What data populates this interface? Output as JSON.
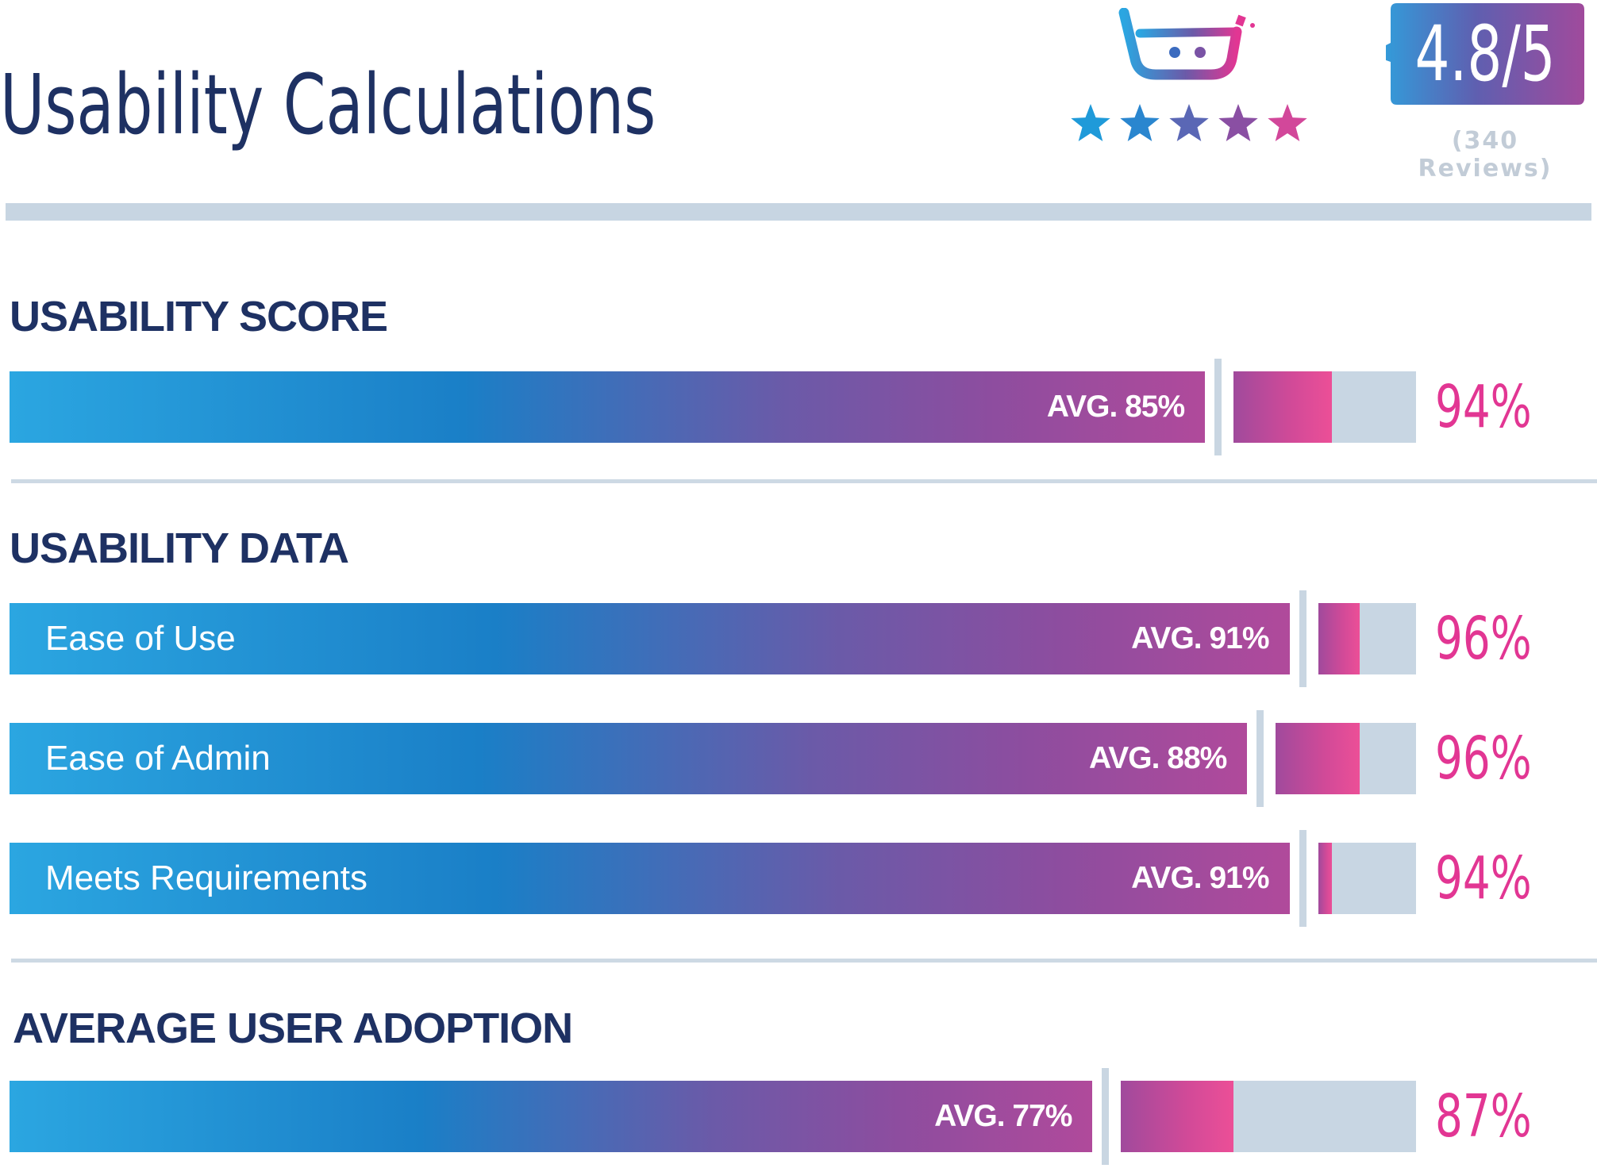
{
  "title": "Usability Calculations",
  "rating": {
    "score": "4.8/5",
    "reviews": "(340 Reviews)",
    "stars": 5
  },
  "colors": {
    "navy": "#1e3163",
    "accent_pink": "#e23693",
    "track": "#c8d6e3",
    "gradient_start": "#2ba6e1",
    "gradient_end": "#b04a9b"
  },
  "icons": {
    "logo": "g2-basket-logo-icon",
    "star": "star-icon",
    "rating_badge": "speech-badge-icon"
  },
  "chart_data": {
    "type": "bar",
    "sections": [
      {
        "heading": "USABILITY SCORE",
        "rows": [
          {
            "label": "",
            "avg": 85,
            "avg_text": "AVG. 85%",
            "value": 94,
            "value_text": "94%"
          }
        ]
      },
      {
        "heading": "USABILITY DATA",
        "rows": [
          {
            "label": "Ease of Use",
            "avg": 91,
            "avg_text": "AVG. 91%",
            "value": 96,
            "value_text": "96%"
          },
          {
            "label": "Ease of Admin",
            "avg": 88,
            "avg_text": "AVG. 88%",
            "value": 96,
            "value_text": "96%"
          },
          {
            "label": "Meets Requirements",
            "avg": 91,
            "avg_text": "AVG. 91%",
            "value": 94,
            "value_text": "94%"
          }
        ]
      },
      {
        "heading": "AVERAGE USER ADOPTION",
        "rows": [
          {
            "label": "",
            "avg": 77,
            "avg_text": "AVG. 77%",
            "value": 87,
            "value_text": "87%"
          }
        ]
      }
    ]
  }
}
